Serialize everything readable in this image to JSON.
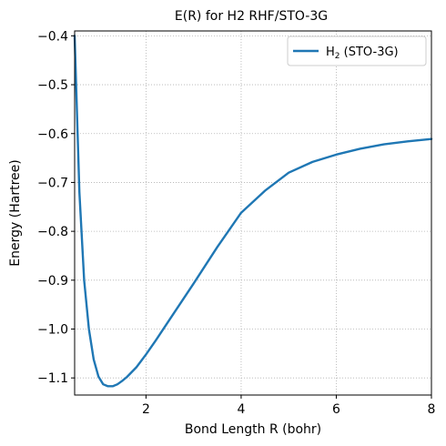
{
  "chart_data": {
    "type": "line",
    "title": "E(R) for H2 RHF/STO-3G",
    "xlabel": "Bond Length R (bohr)",
    "ylabel": "Energy (Hartree)",
    "xlim": [
      0.5,
      8.0
    ],
    "ylim": [
      -1.135,
      -0.39
    ],
    "x_ticks": [
      2,
      4,
      6,
      8
    ],
    "y_ticks": [
      -0.4,
      -0.5,
      -0.6,
      -0.7,
      -0.8,
      -0.9,
      -1.0,
      -1.1
    ],
    "grid": true,
    "legend_position": "top-right",
    "line_color": "#1f77b4",
    "series": [
      {
        "name": "H2 (STO-3G)",
        "x": [
          0.5,
          0.6,
          0.7,
          0.8,
          0.9,
          1.0,
          1.1,
          1.2,
          1.3,
          1.4,
          1.5,
          1.6,
          1.8,
          2.0,
          2.2,
          2.5,
          3.0,
          3.5,
          4.0,
          4.5,
          5.0,
          5.5,
          6.0,
          6.5,
          7.0,
          7.5,
          8.0
        ],
        "y": [
          -0.4,
          -0.72,
          -0.9,
          -1.0,
          -1.062,
          -1.097,
          -1.113,
          -1.117,
          -1.117,
          -1.113,
          -1.106,
          -1.098,
          -1.078,
          -1.052,
          -1.024,
          -0.98,
          -0.907,
          -0.832,
          -0.762,
          -0.717,
          -0.68,
          -0.658,
          -0.643,
          -0.631,
          -0.622,
          -0.616,
          -0.611
        ]
      }
    ],
    "legend": {
      "label_main": "H",
      "label_sub": "2",
      "label_rest": " (STO-3G)"
    }
  }
}
